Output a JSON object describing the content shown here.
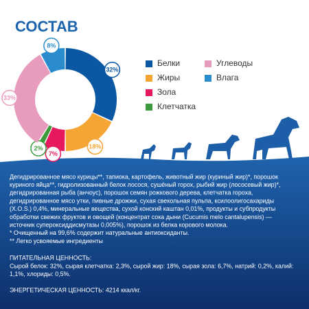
{
  "chart_data": {
    "type": "donut",
    "title": "СОСТАВ",
    "categories": [
      "Белки",
      "Жиры",
      "Зола",
      "Клетчатка",
      "Углеводы",
      "Влага"
    ],
    "values": [
      32,
      18,
      7,
      2,
      33,
      8
    ],
    "value_labels": [
      "32%",
      "18%",
      "7%",
      "2%",
      "33%",
      "8%"
    ],
    "colors": [
      "#0b57a4",
      "#f4a534",
      "#e6195e",
      "#3c9a3c",
      "#e79bbd",
      "#2a8ccc"
    ]
  },
  "ingredients": [
    "Дегидрированное мясо курицы**, тапиока, картофель, животный жир (куриный жир)*, порошок",
    "куриного яйца**, гидролизованный белок лосося, сушёный горох, рыбий жир (лососевый жир)*,",
    "дегидрированная рыба (анчоус), порошок семян рожкового дерева, клетчатка гороха,",
    "дегидрированное мясо утки, пивные дрожжи, сухая свекольная пульпа, ксилоолигосахариды",
    "(X.O.S.) 0,4%, минеральные вещества, сухой конский каштан 0,01%, продукты и субпродукты",
    "обработки свежих фруктов и овощей (концентрат сока дыни (Cucumis melo cantalupensis) —",
    "источник супероксиддисмутазы 0,005%), порошок из белка корового молока.",
    "* Очищенный на 99,6% содержит натуральные антиоксиданты.",
    "** Легко усвояемые ингредиенты"
  ],
  "nutrition": {
    "title": "ПИТАТЕЛЬНАЯ ЦЕННОСТЬ:",
    "lines": [
      "Сырой белок: 32%, сырая клетчатка: 2,3%, сырой жир: 18%, сырая зола: 6,7%, натрий: 0,2%, калий:",
      "1,1%, хлориды: 0,5%."
    ]
  },
  "energy": "ЭНЕРГЕТИЧЕСКАЯ ЦЕННОСТЬ: 4214 ккал/кг."
}
